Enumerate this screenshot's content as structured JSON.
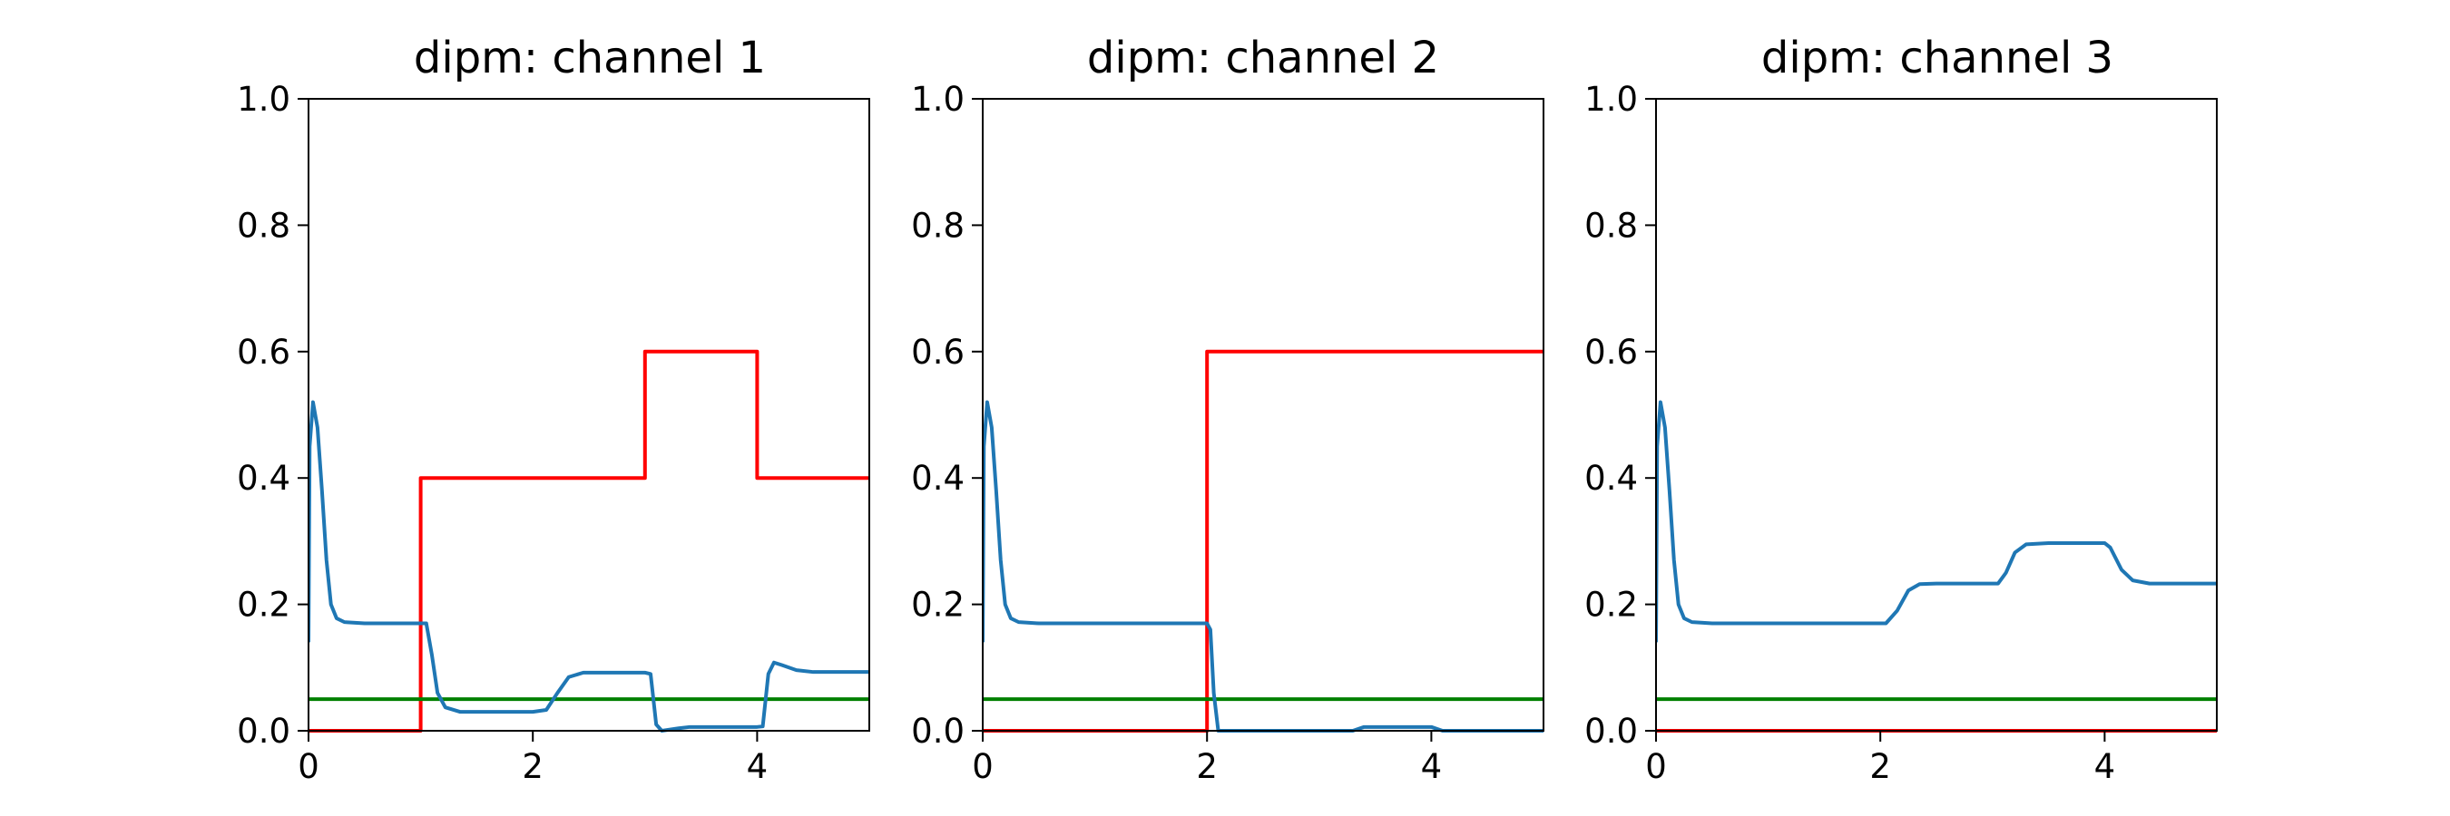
{
  "figure": {
    "background": "#ffffff"
  },
  "chart_data": [
    {
      "type": "line",
      "title": "dipm: channel 1",
      "xlabel": "",
      "ylabel": "",
      "xlim": [
        0,
        5
      ],
      "ylim": [
        0,
        1
      ],
      "xticks": [
        0,
        2,
        4
      ],
      "yticks": [
        0.0,
        0.2,
        0.4,
        0.6,
        0.8,
        1.0
      ],
      "xtick_labels": [
        "0",
        "2",
        "4"
      ],
      "ytick_labels": [
        "0.0",
        "0.2",
        "0.4",
        "0.6",
        "0.8",
        "1.0"
      ],
      "grid": false,
      "series": [
        {
          "color": "#ff0000",
          "points": [
            [
              0,
              0
            ],
            [
              1,
              0
            ],
            [
              1,
              0.4
            ],
            [
              3,
              0.4
            ],
            [
              3,
              0.6
            ],
            [
              4,
              0.6
            ],
            [
              4,
              0.4
            ],
            [
              5,
              0.4
            ]
          ]
        },
        {
          "color": "#008000",
          "points": [
            [
              0,
              0.05
            ],
            [
              5,
              0.05
            ]
          ]
        },
        {
          "color": "#1f77b4",
          "points": [
            [
              0,
              0.14
            ],
            [
              0.01,
              0.45
            ],
            [
              0.04,
              0.52
            ],
            [
              0.08,
              0.48
            ],
            [
              0.12,
              0.38
            ],
            [
              0.16,
              0.27
            ],
            [
              0.2,
              0.2
            ],
            [
              0.25,
              0.178
            ],
            [
              0.32,
              0.172
            ],
            [
              0.5,
              0.17
            ],
            [
              1.0,
              0.17
            ],
            [
              1.05,
              0.17
            ],
            [
              1.1,
              0.12
            ],
            [
              1.15,
              0.06
            ],
            [
              1.22,
              0.037
            ],
            [
              1.35,
              0.03
            ],
            [
              2.0,
              0.03
            ],
            [
              2.12,
              0.033
            ],
            [
              2.22,
              0.06
            ],
            [
              2.32,
              0.085
            ],
            [
              2.45,
              0.092
            ],
            [
              3.0,
              0.092
            ],
            [
              3.05,
              0.09
            ],
            [
              3.1,
              0.01
            ],
            [
              3.15,
              0.0
            ],
            [
              3.3,
              0.004
            ],
            [
              3.4,
              0.006
            ],
            [
              4.0,
              0.006
            ],
            [
              4.05,
              0.007
            ],
            [
              4.1,
              0.09
            ],
            [
              4.15,
              0.108
            ],
            [
              4.22,
              0.104
            ],
            [
              4.35,
              0.096
            ],
            [
              4.5,
              0.093
            ],
            [
              5.0,
              0.093
            ]
          ]
        }
      ]
    },
    {
      "type": "line",
      "title": "dipm: channel 2",
      "xlabel": "",
      "ylabel": "",
      "xlim": [
        0,
        5
      ],
      "ylim": [
        0,
        1
      ],
      "xticks": [
        0,
        2,
        4
      ],
      "yticks": [
        0.0,
        0.2,
        0.4,
        0.6,
        0.8,
        1.0
      ],
      "xtick_labels": [
        "0",
        "2",
        "4"
      ],
      "ytick_labels": [
        "0.0",
        "0.2",
        "0.4",
        "0.6",
        "0.8",
        "1.0"
      ],
      "grid": false,
      "series": [
        {
          "color": "#ff0000",
          "points": [
            [
              0,
              0
            ],
            [
              2,
              0
            ],
            [
              2,
              0.6
            ],
            [
              5,
              0.6
            ]
          ]
        },
        {
          "color": "#008000",
          "points": [
            [
              0,
              0.05
            ],
            [
              5,
              0.05
            ]
          ]
        },
        {
          "color": "#1f77b4",
          "points": [
            [
              0,
              0.14
            ],
            [
              0.01,
              0.45
            ],
            [
              0.04,
              0.52
            ],
            [
              0.08,
              0.48
            ],
            [
              0.12,
              0.38
            ],
            [
              0.16,
              0.27
            ],
            [
              0.2,
              0.2
            ],
            [
              0.25,
              0.178
            ],
            [
              0.32,
              0.172
            ],
            [
              0.5,
              0.17
            ],
            [
              2.0,
              0.17
            ],
            [
              2.03,
              0.16
            ],
            [
              2.06,
              0.06
            ],
            [
              2.1,
              0.0
            ],
            [
              3.3,
              0.0
            ],
            [
              3.4,
              0.006
            ],
            [
              4.0,
              0.006
            ],
            [
              4.1,
              0.0
            ],
            [
              5.0,
              0.0
            ]
          ]
        }
      ]
    },
    {
      "type": "line",
      "title": "dipm: channel 3",
      "xlabel": "",
      "ylabel": "",
      "xlim": [
        0,
        5
      ],
      "ylim": [
        0,
        1
      ],
      "xticks": [
        0,
        2,
        4
      ],
      "yticks": [
        0.0,
        0.2,
        0.4,
        0.6,
        0.8,
        1.0
      ],
      "xtick_labels": [
        "0",
        "2",
        "4"
      ],
      "ytick_labels": [
        "0.0",
        "0.2",
        "0.4",
        "0.6",
        "0.8",
        "1.0"
      ],
      "grid": false,
      "series": [
        {
          "color": "#ff0000",
          "points": [
            [
              0,
              0
            ],
            [
              5,
              0
            ]
          ]
        },
        {
          "color": "#008000",
          "points": [
            [
              0,
              0.05
            ],
            [
              5,
              0.05
            ]
          ]
        },
        {
          "color": "#1f77b4",
          "points": [
            [
              0,
              0.14
            ],
            [
              0.01,
              0.45
            ],
            [
              0.04,
              0.52
            ],
            [
              0.08,
              0.48
            ],
            [
              0.12,
              0.38
            ],
            [
              0.16,
              0.27
            ],
            [
              0.2,
              0.2
            ],
            [
              0.25,
              0.178
            ],
            [
              0.32,
              0.172
            ],
            [
              0.5,
              0.17
            ],
            [
              2.05,
              0.17
            ],
            [
              2.15,
              0.19
            ],
            [
              2.25,
              0.222
            ],
            [
              2.35,
              0.232
            ],
            [
              2.5,
              0.233
            ],
            [
              3.05,
              0.233
            ],
            [
              3.12,
              0.25
            ],
            [
              3.2,
              0.282
            ],
            [
              3.3,
              0.295
            ],
            [
              3.5,
              0.297
            ],
            [
              4.0,
              0.297
            ],
            [
              4.05,
              0.29
            ],
            [
              4.15,
              0.255
            ],
            [
              4.25,
              0.238
            ],
            [
              4.4,
              0.233
            ],
            [
              5.0,
              0.233
            ]
          ]
        }
      ]
    }
  ]
}
